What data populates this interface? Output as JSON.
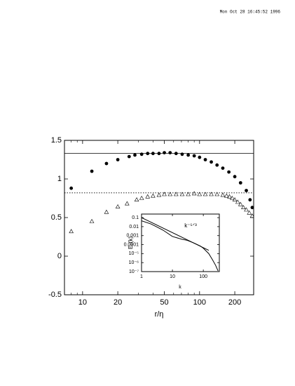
{
  "timestamp": "Mon Oct 28 16:45:52 1996",
  "chart_data": [
    {
      "type": "scatter",
      "xlabel": "r/η",
      "xscale": "log",
      "xlim": [
        7,
        290
      ],
      "xticks": [
        10,
        20,
        50,
        100,
        200
      ],
      "xminorticks": [
        7,
        8,
        9,
        30,
        40,
        60,
        70,
        80,
        90
      ],
      "ylim": [
        -0.5,
        1.5
      ],
      "yticks": [
        -0.5,
        0,
        0.5,
        1,
        1.5
      ],
      "hlines": [
        {
          "value": 1.333,
          "style": "solid"
        },
        {
          "value": 0.82,
          "style": "dotted"
        }
      ],
      "series": [
        {
          "marker": "circle",
          "color": "#000000",
          "x": [
            8,
            12,
            16,
            20,
            25,
            28,
            32,
            36,
            40,
            45,
            50,
            56,
            63,
            71,
            80,
            90,
            100,
            112,
            126,
            141,
            158,
            178,
            200,
            224,
            251,
            270,
            282
          ],
          "values": [
            0.88,
            1.1,
            1.2,
            1.25,
            1.29,
            1.31,
            1.32,
            1.33,
            1.33,
            1.33,
            1.34,
            1.34,
            1.33,
            1.32,
            1.31,
            1.3,
            1.28,
            1.25,
            1.22,
            1.18,
            1.14,
            1.09,
            1.03,
            0.95,
            0.85,
            0.73,
            0.63
          ]
        },
        {
          "marker": "triangle",
          "color": "#000000",
          "x": [
            8,
            12,
            16,
            20,
            24,
            29,
            32,
            36,
            40,
            45,
            50,
            56,
            63,
            71,
            80,
            90,
            100,
            112,
            126,
            141,
            158,
            170,
            180,
            190,
            200,
            212,
            224,
            237,
            251,
            266,
            282
          ],
          "values": [
            0.32,
            0.45,
            0.57,
            0.64,
            0.68,
            0.73,
            0.75,
            0.77,
            0.78,
            0.79,
            0.8,
            0.8,
            0.8,
            0.8,
            0.8,
            0.81,
            0.8,
            0.8,
            0.8,
            0.8,
            0.79,
            0.78,
            0.77,
            0.75,
            0.73,
            0.7,
            0.67,
            0.63,
            0.6,
            0.56,
            0.52
          ]
        }
      ]
    },
    {
      "type": "line",
      "xlabel": "k",
      "ylabel": "Eₚ(k)",
      "xscale": "log",
      "yscale": "log",
      "annotation": "k⁻⁵ᐟ³",
      "xlim": [
        1,
        330
      ],
      "xticks": [
        1,
        10,
        100
      ],
      "ylim": [
        1e-07,
        0.25
      ],
      "yticks": [
        0.1,
        0.01,
        0.001,
        0.0001,
        {
          "value": 1e-05,
          "label": "10⁻⁵"
        },
        {
          "value": 1e-06,
          "label": "10⁻⁶"
        },
        {
          "value": 1e-07,
          "label": "10⁻⁷"
        }
      ],
      "series": [
        {
          "color": "#000000",
          "x": [
            1,
            2,
            3,
            5,
            10,
            20,
            30,
            50,
            80,
            100,
            150,
            200,
            250,
            300
          ],
          "values": [
            0.045,
            0.02,
            0.01,
            0.004,
            0.0008,
            0.0004,
            0.0003,
            0.00015,
            7e-05,
            4e-05,
            1e-05,
            2e-06,
            5e-07,
            1.2e-07
          ]
        },
        {
          "color": "#000000",
          "x": [
            1,
            150
          ],
          "values": [
            0.1,
            2.33e-05
          ]
        }
      ]
    }
  ]
}
